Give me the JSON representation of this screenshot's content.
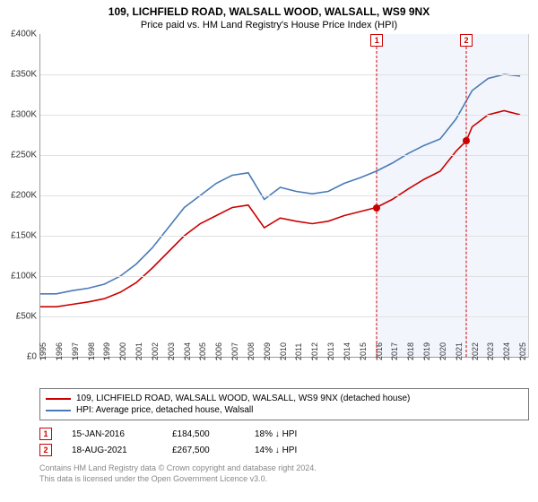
{
  "title": "109, LICHFIELD ROAD, WALSALL WOOD, WALSALL, WS9 9NX",
  "subtitle": "Price paid vs. HM Land Registry's House Price Index (HPI)",
  "chart": {
    "type": "line",
    "ylim": [
      0,
      400000
    ],
    "ytick_step": 50000,
    "yticks_labels": [
      "£0",
      "£50K",
      "£100K",
      "£150K",
      "£200K",
      "£250K",
      "£300K",
      "£350K",
      "£400K"
    ],
    "xlim": [
      1995,
      2025.5
    ],
    "xticks": [
      1995,
      1996,
      1997,
      1998,
      1999,
      2000,
      2001,
      2002,
      2003,
      2004,
      2005,
      2006,
      2007,
      2008,
      2009,
      2010,
      2011,
      2012,
      2013,
      2014,
      2015,
      2016,
      2017,
      2018,
      2019,
      2020,
      2021,
      2022,
      2023,
      2024,
      2025
    ],
    "grid_color": "#e0e0e0",
    "background_color": "#ffffff",
    "highlight_start_year": 2016,
    "highlight_end_year": 2025.5,
    "highlight_color": "#f2f6fc",
    "series": [
      {
        "id": "price_paid",
        "label": "109, LICHFIELD ROAD, WALSALL WOOD, WALSALL, WS9 9NX (detached house)",
        "color": "#cc0000",
        "line_width": 1.6,
        "data": [
          [
            1995,
            62000
          ],
          [
            1996,
            62000
          ],
          [
            1997,
            65000
          ],
          [
            1998,
            68000
          ],
          [
            1999,
            72000
          ],
          [
            2000,
            80000
          ],
          [
            2001,
            92000
          ],
          [
            2002,
            110000
          ],
          [
            2003,
            130000
          ],
          [
            2004,
            150000
          ],
          [
            2005,
            165000
          ],
          [
            2006,
            175000
          ],
          [
            2007,
            185000
          ],
          [
            2008,
            188000
          ],
          [
            2009,
            160000
          ],
          [
            2010,
            172000
          ],
          [
            2011,
            168000
          ],
          [
            2012,
            165000
          ],
          [
            2013,
            168000
          ],
          [
            2014,
            175000
          ],
          [
            2015,
            180000
          ],
          [
            2016,
            185000
          ],
          [
            2017,
            195000
          ],
          [
            2018,
            208000
          ],
          [
            2019,
            220000
          ],
          [
            2020,
            230000
          ],
          [
            2021,
            255000
          ],
          [
            2021.63,
            267500
          ],
          [
            2022,
            285000
          ],
          [
            2023,
            300000
          ],
          [
            2024,
            305000
          ],
          [
            2025,
            300000
          ]
        ]
      },
      {
        "id": "hpi",
        "label": "HPI: Average price, detached house, Walsall",
        "color": "#4a7ab8",
        "line_width": 1.6,
        "data": [
          [
            1995,
            78000
          ],
          [
            1996,
            78000
          ],
          [
            1997,
            82000
          ],
          [
            1998,
            85000
          ],
          [
            1999,
            90000
          ],
          [
            2000,
            100000
          ],
          [
            2001,
            115000
          ],
          [
            2002,
            135000
          ],
          [
            2003,
            160000
          ],
          [
            2004,
            185000
          ],
          [
            2005,
            200000
          ],
          [
            2006,
            215000
          ],
          [
            2007,
            225000
          ],
          [
            2008,
            228000
          ],
          [
            2009,
            195000
          ],
          [
            2010,
            210000
          ],
          [
            2011,
            205000
          ],
          [
            2012,
            202000
          ],
          [
            2013,
            205000
          ],
          [
            2014,
            215000
          ],
          [
            2015,
            222000
          ],
          [
            2016,
            230000
          ],
          [
            2017,
            240000
          ],
          [
            2018,
            252000
          ],
          [
            2019,
            262000
          ],
          [
            2020,
            270000
          ],
          [
            2021,
            295000
          ],
          [
            2022,
            330000
          ],
          [
            2023,
            345000
          ],
          [
            2024,
            350000
          ],
          [
            2025,
            348000
          ]
        ]
      }
    ],
    "markers": [
      {
        "id": 1,
        "label": "1",
        "x_year": 2016.04,
        "y_value": 184500
      },
      {
        "id": 2,
        "label": "2",
        "x_year": 2021.63,
        "y_value": 267500
      }
    ]
  },
  "legend": {
    "items": [
      {
        "color": "#cc0000",
        "label": "109, LICHFIELD ROAD, WALSALL WOOD, WALSALL, WS9 9NX (detached house)"
      },
      {
        "color": "#4a7ab8",
        "label": "HPI: Average price, detached house, Walsall"
      }
    ]
  },
  "sales": [
    {
      "marker": "1",
      "date": "15-JAN-2016",
      "price": "£184,500",
      "diff": "18% ↓ HPI"
    },
    {
      "marker": "2",
      "date": "18-AUG-2021",
      "price": "£267,500",
      "diff": "14% ↓ HPI"
    }
  ],
  "footer": {
    "line1": "Contains HM Land Registry data © Crown copyright and database right 2024.",
    "line2": "This data is licensed under the Open Government Licence v3.0."
  }
}
